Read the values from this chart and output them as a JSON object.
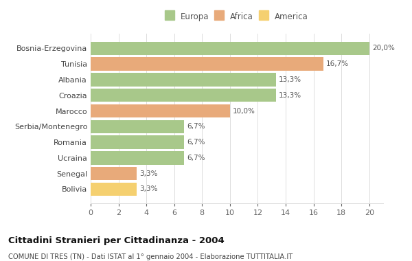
{
  "categories": [
    "Bosnia-Erzegovina",
    "Tunisia",
    "Albania",
    "Croazia",
    "Marocco",
    "Serbia/Montenegro",
    "Romania",
    "Ucraina",
    "Senegal",
    "Bolivia"
  ],
  "values": [
    20.0,
    16.7,
    13.3,
    13.3,
    10.0,
    6.7,
    6.7,
    6.7,
    3.3,
    3.3
  ],
  "labels": [
    "20,0%",
    "16,7%",
    "13,3%",
    "13,3%",
    "10,0%",
    "6,7%",
    "6,7%",
    "6,7%",
    "3,3%",
    "3,3%"
  ],
  "colors": [
    "#a8c88a",
    "#e8aa7a",
    "#a8c88a",
    "#a8c88a",
    "#e8aa7a",
    "#a8c88a",
    "#a8c88a",
    "#a8c88a",
    "#e8aa7a",
    "#f5d070"
  ],
  "legend_labels": [
    "Europa",
    "Africa",
    "America"
  ],
  "legend_colors": [
    "#a8c88a",
    "#e8aa7a",
    "#f5d070"
  ],
  "xlim": [
    0,
    21
  ],
  "xticks": [
    0,
    2,
    4,
    6,
    8,
    10,
    12,
    14,
    16,
    18,
    20
  ],
  "title": "Cittadini Stranieri per Cittadinanza - 2004",
  "subtitle": "COMUNE DI TRES (TN) - Dati ISTAT al 1° gennaio 2004 - Elaborazione TUTTITALIA.IT",
  "bg_color": "#ffffff",
  "bar_height": 0.85
}
